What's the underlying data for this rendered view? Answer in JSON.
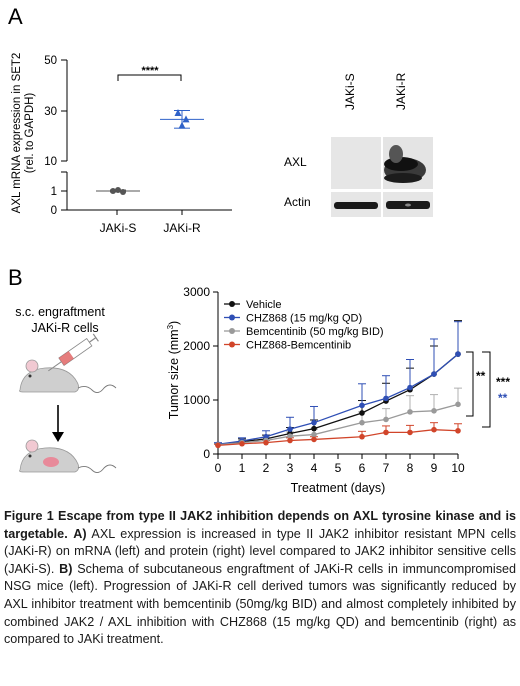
{
  "panel_a": {
    "letter": "A",
    "ylabel_line1": "AXL mRNA expression in SET2",
    "ylabel_line2": "(rel. to GAPDH)",
    "significance": "****",
    "yticks": [
      "0",
      "1",
      "10",
      "30",
      "50"
    ],
    "categories": [
      "JAKi-S",
      "JAKi-R"
    ],
    "blot_lanes": [
      "JAKi-S",
      "JAKi-R"
    ],
    "blot_rows": [
      "AXL",
      "Actin"
    ]
  },
  "panel_b": {
    "letter": "B",
    "schema_line1": "s.c. engraftment",
    "schema_line2": "JAKi-R cells",
    "significance_inner": "**",
    "significance_outer_1": "***",
    "significance_outer_2": "**",
    "colors": {
      "significance_blue": "#2f4fb5"
    }
  },
  "chart_data": [
    {
      "type": "scatter",
      "title": "",
      "xlabel": "",
      "ylabel": "AXL mRNA expression in SET2 (rel. to GAPDH)",
      "categories": [
        "JAKi-S",
        "JAKi-R"
      ],
      "axis_break": [
        2,
        10
      ],
      "ylim": [
        0,
        50
      ],
      "series": [
        {
          "category": "JAKi-S",
          "points": [
            1.0,
            1.05,
            0.95
          ],
          "mean": 1.0,
          "sd": 0.05
        },
        {
          "category": "JAKi-R",
          "points": [
            29,
            26.5,
            24
          ],
          "mean": 26.5,
          "sd": 3.5
        }
      ]
    },
    {
      "type": "line",
      "title": "",
      "xlabel": "Treatment (days)",
      "ylabel": "Tumor size (mm³)",
      "xlim": [
        0,
        10
      ],
      "ylim": [
        0,
        3000
      ],
      "xticks": [
        0,
        1,
        2,
        3,
        4,
        5,
        6,
        7,
        8,
        9,
        10
      ],
      "yticks": [
        0,
        1000,
        2000,
        3000
      ],
      "legend_position": "top-left",
      "series": [
        {
          "name": "Vehicle",
          "color": "#111111",
          "x": [
            0,
            1,
            2,
            3,
            4,
            6,
            7,
            8,
            9,
            10
          ],
          "y": [
            170,
            230,
            280,
            380,
            470,
            760,
            980,
            1190,
            1480,
            1850
          ],
          "err": [
            30,
            50,
            70,
            110,
            160,
            230,
            330,
            400,
            520,
            620
          ]
        },
        {
          "name": "CHZ868 (15 mg/kg QD)",
          "color": "#2f4fb5",
          "x": [
            0,
            1,
            2,
            3,
            4,
            6,
            7,
            8,
            9,
            10
          ],
          "y": [
            180,
            240,
            320,
            460,
            580,
            900,
            1030,
            1230,
            1480,
            1850
          ],
          "err": [
            30,
            60,
            110,
            220,
            300,
            400,
            420,
            520,
            650,
            600
          ]
        },
        {
          "name": "Bemcentinib (50 mg/kg BID)",
          "color": "#9a9a9a",
          "x": [
            0,
            1,
            2,
            3,
            4,
            6,
            7,
            8,
            9,
            10
          ],
          "y": [
            170,
            210,
            250,
            330,
            360,
            580,
            640,
            780,
            800,
            920
          ],
          "err": [
            20,
            40,
            60,
            80,
            100,
            200,
            200,
            300,
            300,
            300
          ]
        },
        {
          "name": "CHZ868-Bemcentinib",
          "color": "#d1452a",
          "x": [
            0,
            1,
            2,
            3,
            4,
            6,
            7,
            8,
            9,
            10
          ],
          "y": [
            160,
            190,
            210,
            250,
            270,
            320,
            400,
            400,
            450,
            430
          ],
          "err": [
            20,
            30,
            40,
            50,
            50,
            100,
            120,
            130,
            130,
            130
          ]
        }
      ]
    }
  ],
  "caption": {
    "bold_intro": "Figure 1 Escape from type II JAK2 inhibition depends on AXL tyrosine kinase and is targetable.",
    "label_a": "A)",
    "text_a": "AXL expression is increased in type II JAK2 inhibitor resistant MPN cells (JAKi-R) on mRNA (left) and protein (right) level compared to JAK2 inhibitor sensitive cells (JAKi-S).",
    "label_b": "B)",
    "text_b": "Schema of subcutaneous engraftment of JAKi-R cells in immuncompromised NSG mice (left). Progression of JAKi-R cell derived tumors was significantly reduced by AXL inhibitor treatment with bemcentinib (50mg/kg BID) and almost completely inhibited by combined JAK2 / AXL inhibition with CHZ868 (15 mg/kg QD) and bemcentinib (right) as compared to JAKi treatment."
  }
}
